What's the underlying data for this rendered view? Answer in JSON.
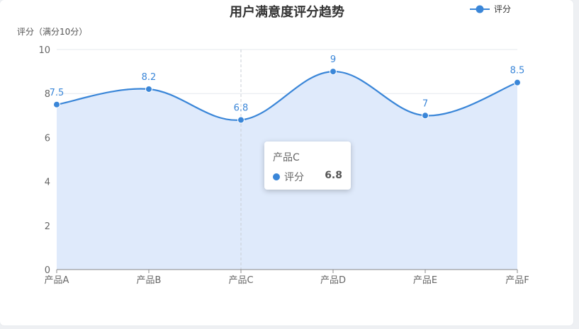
{
  "chart_data": {
    "type": "area",
    "title": "用户满意度评分趋势",
    "ylabel": "评分（满分10分）",
    "categories": [
      "产品A",
      "产品B",
      "产品C",
      "产品D",
      "产品E",
      "产品F"
    ],
    "series": [
      {
        "name": "评分",
        "values": [
          7.5,
          8.2,
          6.8,
          9,
          7,
          8.5
        ]
      }
    ],
    "ylim": [
      0,
      10
    ],
    "yticks": [
      0,
      2,
      4,
      6,
      8,
      10
    ],
    "smooth": true,
    "grid": true,
    "legend": "top-right",
    "color": "#3a86d8",
    "fill_color": "#dfeafb"
  },
  "tooltip": {
    "category": "产品C",
    "series_name": "评分",
    "value": "6.8"
  }
}
